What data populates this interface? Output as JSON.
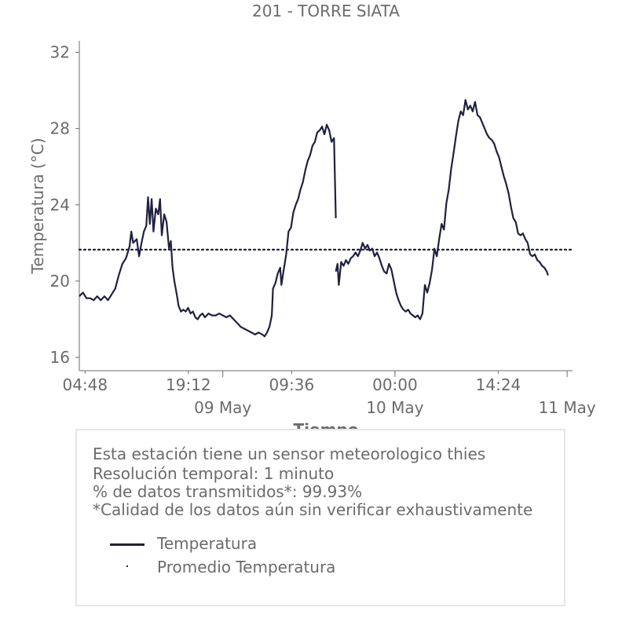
{
  "chart_data": {
    "type": "line",
    "title": "201 - TORRE SIATA",
    "xlabel": "Tiempo",
    "ylabel": "Temperatura (°C)",
    "ylim": [
      15.3,
      32.6
    ],
    "yticks": [
      16,
      20,
      24,
      28,
      32
    ],
    "xlim": [
      "2023-05-08 04:00",
      "2023-05-11 00:45"
    ],
    "xticks_minor": [
      {
        "t": "2023-05-08 04:48",
        "label": "04:48"
      },
      {
        "t": "2023-05-08 19:12",
        "label": "19:12"
      },
      {
        "t": "2023-05-09 09:36",
        "label": "09:36"
      },
      {
        "t": "2023-05-10 00:00",
        "label": "00:00"
      },
      {
        "t": "2023-05-10 14:24",
        "label": "14:24"
      }
    ],
    "xticks_major": [
      {
        "t": "2023-05-09 00:00",
        "label": "09 May"
      },
      {
        "t": "2023-05-10 00:00",
        "label": "10 May"
      },
      {
        "t": "2023-05-11 00:00",
        "label": "11 May"
      }
    ],
    "grid": false,
    "series": [
      {
        "name": "Temperatura",
        "color": "#20213f",
        "style": "solid",
        "segments": [
          [
            [
              "2023-05-08 04:00",
              19.2
            ],
            [
              "2023-05-08 04:30",
              19.4
            ],
            [
              "2023-05-08 05:00",
              19.1
            ],
            [
              "2023-05-08 05:30",
              19.1
            ],
            [
              "2023-05-08 06:00",
              19.0
            ],
            [
              "2023-05-08 06:30",
              19.2
            ],
            [
              "2023-05-08 07:00",
              19.0
            ],
            [
              "2023-05-08 07:30",
              19.2
            ],
            [
              "2023-05-08 08:00",
              19.0
            ],
            [
              "2023-05-08 08:30",
              19.3
            ],
            [
              "2023-05-08 09:00",
              19.6
            ],
            [
              "2023-05-08 09:30",
              20.3
            ],
            [
              "2023-05-08 10:00",
              20.9
            ],
            [
              "2023-05-08 10:30",
              21.2
            ],
            [
              "2023-05-08 11:00",
              21.8
            ],
            [
              "2023-05-08 11:15",
              22.6
            ],
            [
              "2023-05-08 11:30",
              22.0
            ],
            [
              "2023-05-08 12:00",
              22.2
            ],
            [
              "2023-05-08 12:20",
              21.3
            ],
            [
              "2023-05-08 12:40",
              22.0
            ],
            [
              "2023-05-08 13:00",
              22.6
            ],
            [
              "2023-05-08 13:20",
              22.9
            ],
            [
              "2023-05-08 13:35",
              24.4
            ],
            [
              "2023-05-08 13:50",
              23.0
            ],
            [
              "2023-05-08 14:05",
              24.3
            ],
            [
              "2023-05-08 14:20",
              22.6
            ],
            [
              "2023-05-08 14:40",
              23.8
            ],
            [
              "2023-05-08 15:00",
              23.5
            ],
            [
              "2023-05-08 15:15",
              24.3
            ],
            [
              "2023-05-08 15:30",
              22.4
            ],
            [
              "2023-05-08 15:50",
              23.5
            ],
            [
              "2023-05-08 16:10",
              23.1
            ],
            [
              "2023-05-08 16:30",
              21.7
            ],
            [
              "2023-05-08 16:45",
              22.1
            ],
            [
              "2023-05-08 17:00",
              20.7
            ],
            [
              "2023-05-08 17:15",
              20.0
            ],
            [
              "2023-05-08 17:35",
              19.3
            ],
            [
              "2023-05-08 17:50",
              18.7
            ],
            [
              "2023-05-08 18:10",
              18.4
            ],
            [
              "2023-05-08 18:30",
              18.5
            ],
            [
              "2023-05-08 18:50",
              18.4
            ],
            [
              "2023-05-08 19:10",
              18.6
            ],
            [
              "2023-05-08 19:30",
              18.3
            ],
            [
              "2023-05-08 19:50",
              18.4
            ],
            [
              "2023-05-08 20:10",
              18.1
            ],
            [
              "2023-05-08 20:30",
              18.0
            ],
            [
              "2023-05-08 20:50",
              18.2
            ],
            [
              "2023-05-08 21:10",
              18.3
            ],
            [
              "2023-05-08 21:30",
              18.1
            ],
            [
              "2023-05-08 22:00",
              18.3
            ],
            [
              "2023-05-08 22:30",
              18.2
            ],
            [
              "2023-05-08 23:00",
              18.2
            ],
            [
              "2023-05-08 23:30",
              18.3
            ],
            [
              "2023-05-09 00:00",
              18.2
            ],
            [
              "2023-05-09 00:30",
              18.1
            ],
            [
              "2023-05-09 01:00",
              18.2
            ],
            [
              "2023-05-09 01:30",
              18.0
            ],
            [
              "2023-05-09 02:00",
              17.8
            ],
            [
              "2023-05-09 02:30",
              17.6
            ],
            [
              "2023-05-09 03:00",
              17.5
            ],
            [
              "2023-05-09 03:30",
              17.4
            ],
            [
              "2023-05-09 04:00",
              17.3
            ],
            [
              "2023-05-09 04:30",
              17.2
            ],
            [
              "2023-05-09 05:00",
              17.3
            ],
            [
              "2023-05-09 05:30",
              17.2
            ],
            [
              "2023-05-09 05:50",
              17.1
            ],
            [
              "2023-05-09 06:10",
              17.3
            ],
            [
              "2023-05-09 06:30",
              17.6
            ],
            [
              "2023-05-09 06:50",
              18.2
            ],
            [
              "2023-05-09 07:00",
              19.6
            ],
            [
              "2023-05-09 07:20",
              19.9
            ],
            [
              "2023-05-09 07:40",
              20.4
            ],
            [
              "2023-05-09 08:00",
              20.7
            ],
            [
              "2023-05-09 08:10",
              19.8
            ],
            [
              "2023-05-09 08:30",
              20.6
            ],
            [
              "2023-05-09 08:50",
              21.4
            ],
            [
              "2023-05-09 09:10",
              22.6
            ],
            [
              "2023-05-09 09:30",
              22.8
            ],
            [
              "2023-05-09 09:50",
              23.6
            ],
            [
              "2023-05-09 10:10",
              24.0
            ],
            [
              "2023-05-09 10:30",
              24.3
            ],
            [
              "2023-05-09 10:50",
              24.8
            ],
            [
              "2023-05-09 11:10",
              25.2
            ],
            [
              "2023-05-09 11:30",
              25.8
            ],
            [
              "2023-05-09 11:50",
              26.3
            ],
            [
              "2023-05-09 12:10",
              26.6
            ],
            [
              "2023-05-09 12:30",
              27.1
            ],
            [
              "2023-05-09 12:50",
              27.3
            ],
            [
              "2023-05-09 13:10",
              27.8
            ],
            [
              "2023-05-09 13:30",
              27.9
            ],
            [
              "2023-05-09 13:50",
              28.1
            ],
            [
              "2023-05-09 14:10",
              27.7
            ],
            [
              "2023-05-09 14:30",
              28.2
            ],
            [
              "2023-05-09 14:50",
              27.9
            ],
            [
              "2023-05-09 15:10",
              27.3
            ],
            [
              "2023-05-09 15:30",
              27.5
            ],
            [
              "2023-05-09 15:45",
              23.3
            ]
          ],
          [
            [
              "2023-05-09 15:45",
              20.5
            ],
            [
              "2023-05-09 16:00",
              20.9
            ],
            [
              "2023-05-09 16:10",
              19.8
            ],
            [
              "2023-05-09 16:30",
              21.0
            ],
            [
              "2023-05-09 16:50",
              20.8
            ],
            [
              "2023-05-09 17:10",
              21.1
            ],
            [
              "2023-05-09 17:30",
              20.9
            ],
            [
              "2023-05-09 17:50",
              21.2
            ],
            [
              "2023-05-09 18:10",
              21.3
            ],
            [
              "2023-05-09 18:30",
              21.5
            ],
            [
              "2023-05-09 18:50",
              21.3
            ],
            [
              "2023-05-09 19:10",
              21.6
            ],
            [
              "2023-05-09 19:30",
              22.0
            ],
            [
              "2023-05-09 19:50",
              21.7
            ],
            [
              "2023-05-09 20:10",
              21.9
            ],
            [
              "2023-05-09 20:30",
              21.6
            ],
            [
              "2023-05-09 20:50",
              21.7
            ],
            [
              "2023-05-09 21:10",
              21.3
            ],
            [
              "2023-05-09 21:30",
              21.5
            ],
            [
              "2023-05-09 21:50",
              21.2
            ],
            [
              "2023-05-09 22:10",
              20.8
            ],
            [
              "2023-05-09 22:30",
              20.5
            ],
            [
              "2023-05-09 22:50",
              20.4
            ],
            [
              "2023-05-09 23:10",
              20.9
            ],
            [
              "2023-05-09 23:30",
              20.6
            ],
            [
              "2023-05-09 23:50",
              20.0
            ],
            [
              "2023-05-10 00:10",
              19.4
            ],
            [
              "2023-05-10 00:30",
              19.0
            ],
            [
              "2023-05-10 00:50",
              18.7
            ],
            [
              "2023-05-10 01:10",
              18.5
            ],
            [
              "2023-05-10 01:30",
              18.4
            ],
            [
              "2023-05-10 01:50",
              18.5
            ],
            [
              "2023-05-10 02:10",
              18.3
            ],
            [
              "2023-05-10 02:30",
              18.2
            ],
            [
              "2023-05-10 02:50",
              18.1
            ],
            [
              "2023-05-10 03:10",
              18.2
            ],
            [
              "2023-05-10 03:30",
              18.0
            ],
            [
              "2023-05-10 03:50",
              18.3
            ],
            [
              "2023-05-10 04:10",
              19.8
            ],
            [
              "2023-05-10 04:30",
              19.4
            ],
            [
              "2023-05-10 04:50",
              19.9
            ],
            [
              "2023-05-10 05:10",
              20.6
            ],
            [
              "2023-05-10 05:30",
              21.7
            ],
            [
              "2023-05-10 05:50",
              21.3
            ],
            [
              "2023-05-10 06:10",
              22.2
            ],
            [
              "2023-05-10 06:30",
              23.0
            ],
            [
              "2023-05-10 06:50",
              22.7
            ],
            [
              "2023-05-10 07:10",
              24.1
            ],
            [
              "2023-05-10 07:30",
              24.8
            ],
            [
              "2023-05-10 07:50",
              25.9
            ],
            [
              "2023-05-10 08:10",
              26.7
            ],
            [
              "2023-05-10 08:30",
              27.6
            ],
            [
              "2023-05-10 08:50",
              28.4
            ],
            [
              "2023-05-10 09:10",
              28.9
            ],
            [
              "2023-05-10 09:30",
              28.7
            ],
            [
              "2023-05-10 09:50",
              29.5
            ],
            [
              "2023-05-10 10:10",
              29.0
            ],
            [
              "2023-05-10 10:30",
              29.2
            ],
            [
              "2023-05-10 10:50",
              28.9
            ],
            [
              "2023-05-10 11:10",
              29.4
            ],
            [
              "2023-05-10 11:30",
              28.7
            ],
            [
              "2023-05-10 11:50",
              28.6
            ],
            [
              "2023-05-10 12:10",
              28.3
            ],
            [
              "2023-05-10 12:30",
              28.0
            ],
            [
              "2023-05-10 12:50",
              27.7
            ],
            [
              "2023-05-10 13:10",
              27.5
            ],
            [
              "2023-05-10 13:30",
              27.4
            ],
            [
              "2023-05-10 13:50",
              27.2
            ],
            [
              "2023-05-10 14:10",
              26.8
            ],
            [
              "2023-05-10 14:30",
              26.5
            ],
            [
              "2023-05-10 14:50",
              26.0
            ],
            [
              "2023-05-10 15:10",
              25.5
            ],
            [
              "2023-05-10 15:30",
              25.1
            ],
            [
              "2023-05-10 15:50",
              24.6
            ],
            [
              "2023-05-10 16:10",
              23.9
            ],
            [
              "2023-05-10 16:30",
              23.3
            ],
            [
              "2023-05-10 16:50",
              23.1
            ],
            [
              "2023-05-10 17:10",
              22.5
            ],
            [
              "2023-05-10 17:30",
              22.4
            ],
            [
              "2023-05-10 17:50",
              22.5
            ],
            [
              "2023-05-10 18:10",
              22.2
            ],
            [
              "2023-05-10 18:30",
              22.0
            ],
            [
              "2023-05-10 18:50",
              21.4
            ],
            [
              "2023-05-10 19:10",
              21.3
            ],
            [
              "2023-05-10 19:30",
              21.4
            ],
            [
              "2023-05-10 19:50",
              21.1
            ],
            [
              "2023-05-10 20:10",
              21.0
            ],
            [
              "2023-05-10 20:30",
              20.8
            ],
            [
              "2023-05-10 20:50",
              20.7
            ],
            [
              "2023-05-10 21:10",
              20.5
            ],
            [
              "2023-05-10 21:20",
              20.3
            ]
          ]
        ]
      },
      {
        "name": "Promedio Temperatura",
        "color": "#20213f",
        "style": "dotted",
        "value": 21.65
      }
    ]
  },
  "info": {
    "line1": "Esta estación tiene un sensor meteorologico thies",
    "line2": "Resolución temporal: 1 minuto",
    "line3": "% de datos transmitidos*: 99.93%",
    "line4": "*Calidad de los datos aún sin verificar exhaustivamente"
  },
  "legend": {
    "item1": "Temperatura",
    "item2": "Promedio Temperatura"
  }
}
